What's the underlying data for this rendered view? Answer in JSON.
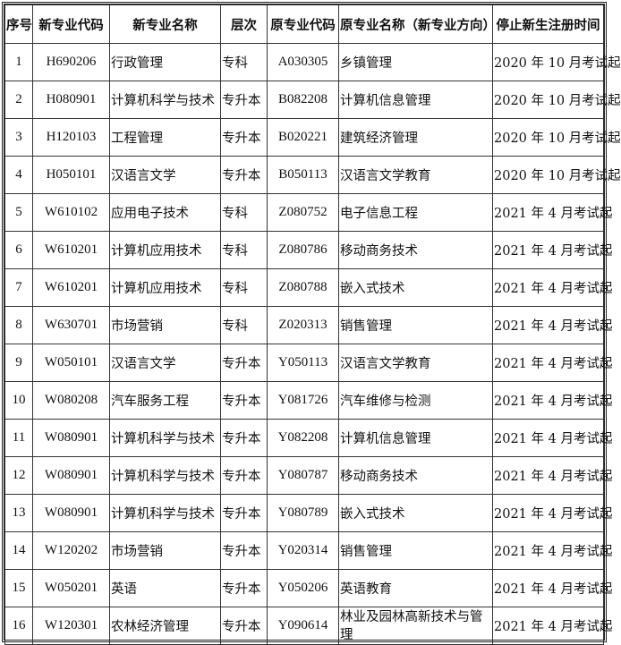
{
  "headers": [
    "序号",
    "新专业代码",
    "新专业名称",
    "层次",
    "原专业代码",
    "原专业名称（新专业方向）",
    "停止新生注册时间"
  ],
  "rows": [
    [
      "1",
      "H690206",
      "行政管理",
      "专科",
      "A030305",
      "乡镇管理",
      "2020 年 10 月考试起"
    ],
    [
      "2",
      "H080901",
      "计算机科学与技术",
      "专升本",
      "B082208",
      "计算机信息管理",
      "2020 年 10 月考试起"
    ],
    [
      "3",
      "H120103",
      "工程管理",
      "专升本",
      "B020221",
      "建筑经济管理",
      "2020 年 10 月考试起"
    ],
    [
      "4",
      "H050101",
      "汉语言文学",
      "专升本",
      "B050113",
      "汉语言文学教育",
      "2020 年 10 月考试起"
    ],
    [
      "5",
      "W610102",
      "应用电子技术",
      "专科",
      "Z080752",
      "电子信息工程",
      "2021 年 4 月考试起"
    ],
    [
      "6",
      "W610201",
      "计算机应用技术",
      "专科",
      "Z080786",
      "移动商务技术",
      "2021 年 4 月考试起"
    ],
    [
      "7",
      "W610201",
      "计算机应用技术",
      "专科",
      "Z080788",
      "嵌入式技术",
      "2021 年 4 月考试起"
    ],
    [
      "8",
      "W630701",
      "市场营销",
      "专科",
      "Z020313",
      "销售管理",
      "2021 年 4 月考试起"
    ],
    [
      "9",
      "W050101",
      "汉语言文学",
      "专升本",
      "Y050113",
      "汉语言文学教育",
      "2021 年 4 月考试起"
    ],
    [
      "10",
      "W080208",
      "汽车服务工程",
      "专升本",
      "Y081726",
      "汽车维修与检测",
      "2021 年 4 月考试起"
    ],
    [
      "11",
      "W080901",
      "计算机科学与技术",
      "专升本",
      "Y082208",
      "计算机信息管理",
      "2021 年 4 月考试起"
    ],
    [
      "12",
      "W080901",
      "计算机科学与技术",
      "专升本",
      "Y080787",
      "移动商务技术",
      "2021 年 4 月考试起"
    ],
    [
      "13",
      "W080901",
      "计算机科学与技术",
      "专升本",
      "Y080789",
      "嵌入式技术",
      "2021 年 4 月考试起"
    ],
    [
      "14",
      "W120202",
      "市场营销",
      "专升本",
      "Y020314",
      "销售管理",
      "2021 年 4 月考试起"
    ],
    [
      "15",
      "W050201",
      "英语",
      "专升本",
      "Y050206",
      "英语教育",
      "2021 年 4 月考试起"
    ],
    [
      "16",
      "W120301",
      "农林经济管理",
      "专升本",
      "Y090614",
      "林业及园林高新技术与管理",
      "2021 年 4 月考试起"
    ]
  ]
}
